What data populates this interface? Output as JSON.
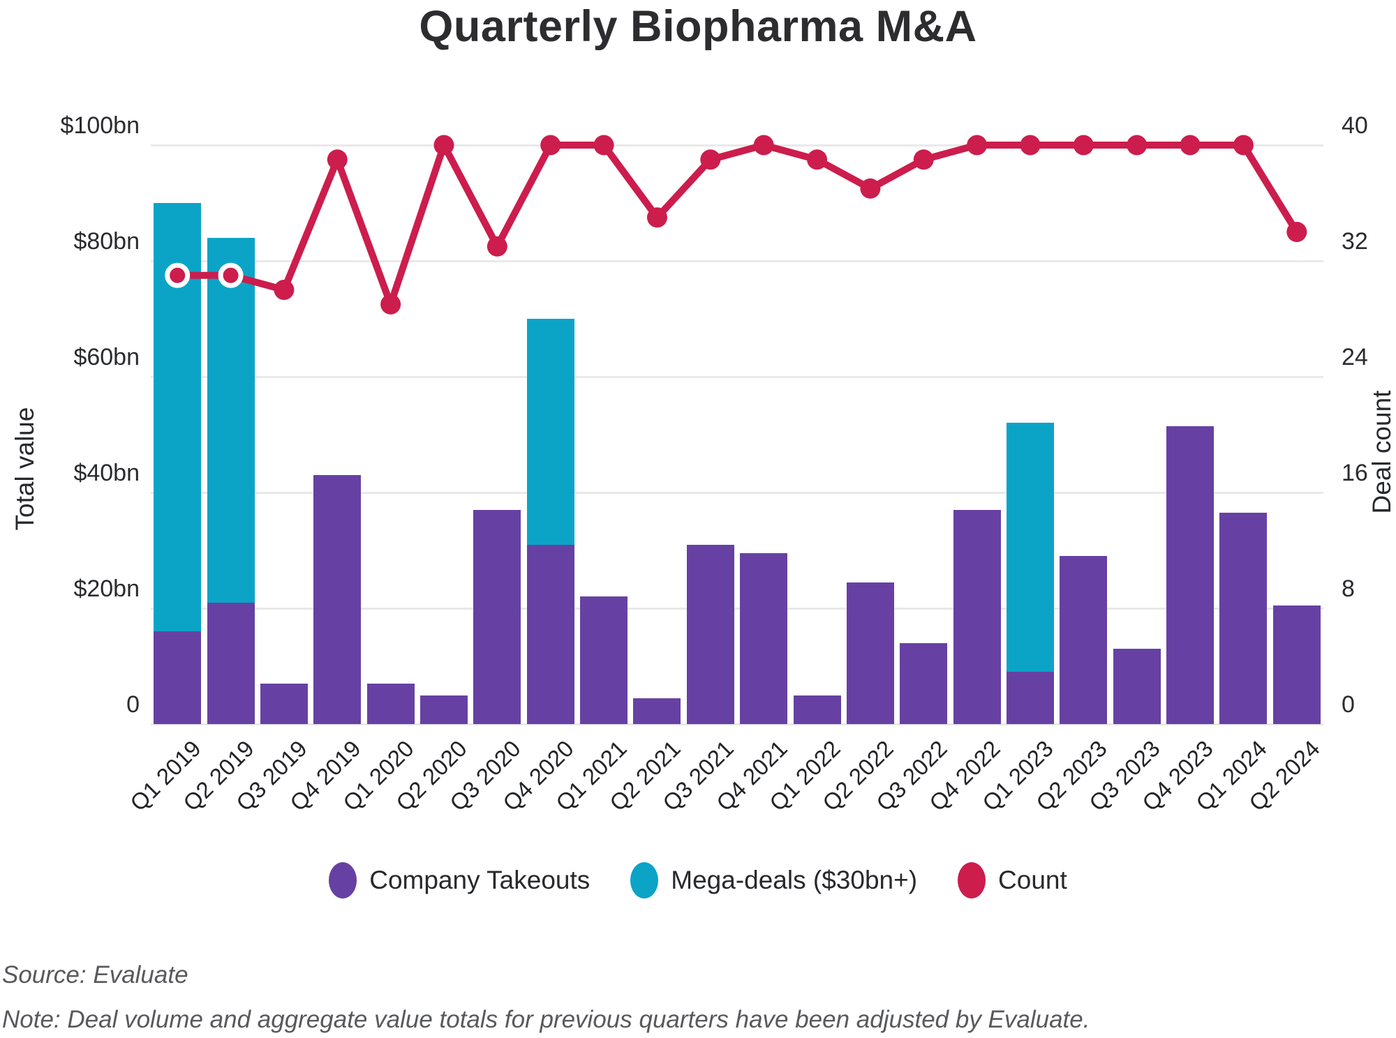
{
  "title": "Quarterly Biopharma M&A",
  "source_line": "Source: Evaluate",
  "note_line": "Note: Deal volume and aggregate value totals for previous quarters have been adjusted by Evaluate.",
  "colors": {
    "takeouts": "#6641A3",
    "mega_deals": "#0BA4C7",
    "count_line": "#CC1D4D",
    "gridline": "#E9E9E9",
    "text_dark": "#2A2B2E",
    "footnote_gray": "#58595C"
  },
  "chart_data": {
    "type": "bar",
    "subtype": "stacked-bar-with-line-overlay",
    "title": "Quarterly Biopharma M&A",
    "grid": "horizontal",
    "legend_position": "bottom",
    "categories": [
      "Q1 2019",
      "Q2 2019",
      "Q3 2019",
      "Q4 2019",
      "Q1 2020",
      "Q2 2020",
      "Q3 2020",
      "Q4 2020",
      "Q1 2021",
      "Q2 2021",
      "Q3 2021",
      "Q4 2021",
      "Q1 2022",
      "Q2 2022",
      "Q3 2022",
      "Q4 2022",
      "Q1 2023",
      "Q2 2023",
      "Q3 2023",
      "Q4 2023",
      "Q1 2024",
      "Q2 2024"
    ],
    "series": [
      {
        "name": "Company Takeouts",
        "type": "bar",
        "stack": "value",
        "axis": "left",
        "values": [
          16,
          21,
          7,
          43,
          7,
          5,
          37,
          31,
          22,
          4.5,
          31,
          29.5,
          5,
          24.5,
          14,
          37,
          9,
          29,
          13,
          51.5,
          36.5,
          20.5
        ]
      },
      {
        "name": "Mega-deals ($30bn+)",
        "type": "bar",
        "stack": "value",
        "axis": "left",
        "values": [
          74,
          63,
          0,
          0,
          0,
          0,
          0,
          39,
          0,
          0,
          0,
          0,
          0,
          0,
          0,
          0,
          43,
          0,
          0,
          0,
          0,
          0
        ]
      },
      {
        "name": "Count",
        "type": "line",
        "axis": "right",
        "values": [
          31,
          31,
          30,
          39,
          29,
          40,
          33,
          40,
          40,
          35,
          39,
          40,
          39,
          37,
          39,
          40,
          40,
          40,
          40,
          40,
          40,
          34
        ],
        "white_ring_point_indexes": [
          0,
          1
        ]
      }
    ],
    "left_axis": {
      "label": "Total value",
      "range": [
        0,
        100
      ],
      "ticks": [
        {
          "label": "0",
          "value": 0
        },
        {
          "label": "$20bn",
          "value": 20
        },
        {
          "label": "$40bn",
          "value": 40
        },
        {
          "label": "$60bn",
          "value": 60
        },
        {
          "label": "$80bn",
          "value": 80
        },
        {
          "label": "$100bn",
          "value": 100
        }
      ]
    },
    "right_axis": {
      "label": "Deal count",
      "range": [
        0,
        40
      ],
      "ticks": [
        {
          "label": "0",
          "value": 0
        },
        {
          "label": "8",
          "value": 8
        },
        {
          "label": "16",
          "value": 16
        },
        {
          "label": "24",
          "value": 24
        },
        {
          "label": "32",
          "value": 32
        },
        {
          "label": "40",
          "value": 40
        }
      ]
    }
  }
}
